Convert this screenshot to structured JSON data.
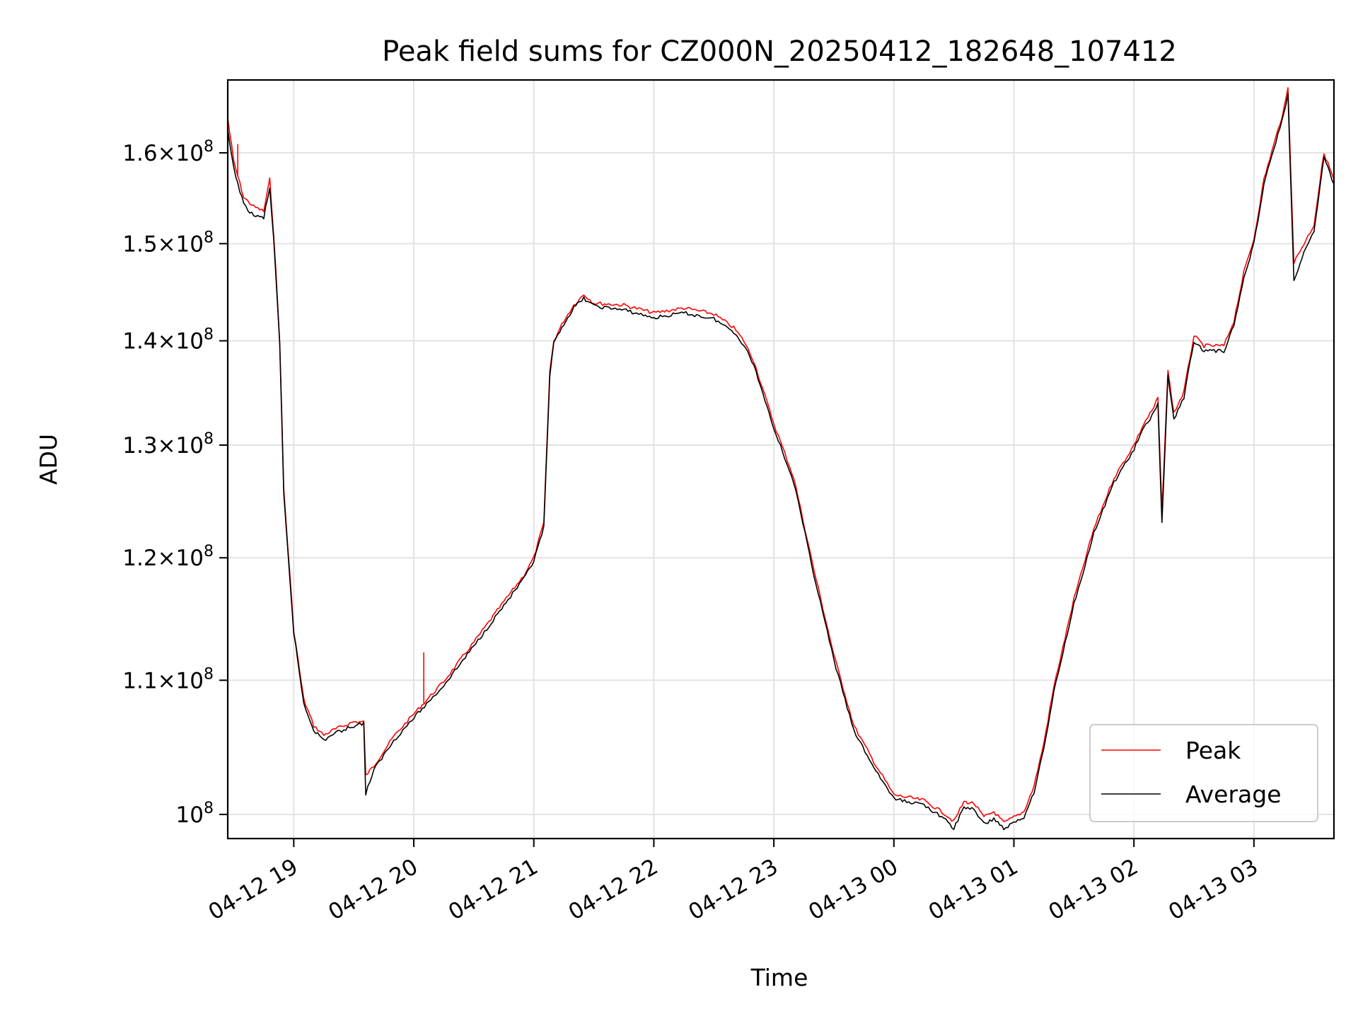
{
  "chart_data": {
    "type": "line",
    "title": "Peak field sums for CZ000N_20250412_182648_107412",
    "xlabel": "Time",
    "ylabel": "ADU",
    "yscale": "log",
    "grid": true,
    "legend_position": "bottom-right",
    "xlim": [
      "2025-04-12 18:27",
      "2025-04-13 03:40"
    ],
    "ylim": [
      98300000,
      168500000
    ],
    "x_ticks": [
      {
        "value": "2025-04-12 19:00",
        "label": "04-12 19"
      },
      {
        "value": "2025-04-12 20:00",
        "label": "04-12 20"
      },
      {
        "value": "2025-04-12 21:00",
        "label": "04-12 21"
      },
      {
        "value": "2025-04-12 22:00",
        "label": "04-12 22"
      },
      {
        "value": "2025-04-12 23:00",
        "label": "04-12 23"
      },
      {
        "value": "2025-04-13 00:00",
        "label": "04-13 00"
      },
      {
        "value": "2025-04-13 01:00",
        "label": "04-13 01"
      },
      {
        "value": "2025-04-13 02:00",
        "label": "04-13 02"
      },
      {
        "value": "2025-04-13 03:00",
        "label": "04-13 03"
      }
    ],
    "y_ticks": [
      {
        "value": 100000000,
        "mantissa": "",
        "exponent": "8"
      },
      {
        "value": 110000000,
        "mantissa": "1.1",
        "exponent": "8"
      },
      {
        "value": 120000000,
        "mantissa": "1.2",
        "exponent": "8"
      },
      {
        "value": 130000000,
        "mantissa": "1.3",
        "exponent": "8"
      },
      {
        "value": 140000000,
        "mantissa": "1.4",
        "exponent": "8"
      },
      {
        "value": 150000000,
        "mantissa": "1.5",
        "exponent": "8"
      },
      {
        "value": 160000000,
        "mantissa": "1.6",
        "exponent": "8"
      }
    ],
    "series": [
      {
        "name": "Peak",
        "color": "#ff0000",
        "x": [
          "2025-04-12 18:27",
          "2025-04-12 18:30",
          "2025-04-12 18:35",
          "2025-04-12 18:40",
          "2025-04-12 18:45",
          "2025-04-12 18:48",
          "2025-04-12 18:50",
          "2025-04-12 18:53",
          "2025-04-12 18:55",
          "2025-04-12 19:00",
          "2025-04-12 19:05",
          "2025-04-12 19:10",
          "2025-04-12 19:15",
          "2025-04-12 19:20",
          "2025-04-12 19:25",
          "2025-04-12 19:30",
          "2025-04-12 19:35",
          "2025-04-12 19:36",
          "2025-04-12 19:40",
          "2025-04-12 19:45",
          "2025-04-12 19:50",
          "2025-04-12 20:00",
          "2025-04-12 20:15",
          "2025-04-12 20:30",
          "2025-04-12 20:45",
          "2025-04-12 20:55",
          "2025-04-12 21:00",
          "2025-04-12 21:05",
          "2025-04-12 21:08",
          "2025-04-12 21:10",
          "2025-04-12 21:15",
          "2025-04-12 21:20",
          "2025-04-12 21:25",
          "2025-04-12 21:30",
          "2025-04-12 21:45",
          "2025-04-12 22:00",
          "2025-04-12 22:15",
          "2025-04-12 22:30",
          "2025-04-12 22:40",
          "2025-04-12 22:45",
          "2025-04-12 22:50",
          "2025-04-12 23:00",
          "2025-04-12 23:10",
          "2025-04-12 23:20",
          "2025-04-12 23:30",
          "2025-04-12 23:40",
          "2025-04-12 23:50",
          "2025-04-13 00:00",
          "2025-04-13 00:15",
          "2025-04-13 00:25",
          "2025-04-13 00:30",
          "2025-04-13 00:35",
          "2025-04-13 00:40",
          "2025-04-13 00:45",
          "2025-04-13 00:50",
          "2025-04-13 00:55",
          "2025-04-13 01:00",
          "2025-04-13 01:05",
          "2025-04-13 01:10",
          "2025-04-13 01:15",
          "2025-04-13 01:20",
          "2025-04-13 01:30",
          "2025-04-13 01:40",
          "2025-04-13 01:50",
          "2025-04-13 02:00",
          "2025-04-13 02:05",
          "2025-04-13 02:10",
          "2025-04-13 02:12",
          "2025-04-13 02:14",
          "2025-04-13 02:17",
          "2025-04-13 02:20",
          "2025-04-13 02:25",
          "2025-04-13 02:30",
          "2025-04-13 02:35",
          "2025-04-13 02:40",
          "2025-04-13 02:45",
          "2025-04-13 02:50",
          "2025-04-13 02:55",
          "2025-04-13 03:00",
          "2025-04-13 03:05",
          "2025-04-13 03:10",
          "2025-04-13 03:15",
          "2025-04-13 03:17",
          "2025-04-13 03:20",
          "2025-04-13 03:25",
          "2025-04-13 03:30",
          "2025-04-13 03:35",
          "2025-04-13 03:40"
        ],
        "values": [
          164000000,
          159000000,
          155000000,
          154000000,
          153500000,
          157000000,
          151000000,
          140000000,
          126000000,
          114000000,
          108500000,
          106500000,
          105800000,
          106200000,
          106500000,
          106800000,
          106800000,
          102800000,
          103500000,
          104600000,
          105700000,
          107400000,
          109900000,
          113000000,
          116300000,
          118500000,
          120000000,
          123000000,
          137000000,
          140000000,
          142000000,
          143600000,
          144700000,
          143800000,
          143600000,
          142800000,
          143300000,
          142700000,
          141300000,
          140000000,
          138000000,
          132000000,
          127000000,
          119000000,
          112000000,
          106500000,
          103800000,
          101400000,
          101000000,
          100100000,
          99500000,
          100900000,
          100800000,
          99800000,
          100200000,
          99400000,
          99800000,
          100200000,
          102000000,
          105200000,
          109500000,
          116500000,
          122500000,
          127000000,
          130000000,
          132000000,
          133500000,
          134500000,
          124000000,
          137000000,
          133000000,
          135000000,
          140500000,
          139500000,
          139500000,
          139500000,
          142000000,
          147000000,
          150500000,
          157000000,
          161000000,
          165000000,
          167500000,
          148000000,
          150000000,
          152000000,
          160000000,
          157000000
        ],
        "spikes": [
          {
            "x": "2025-04-12 18:32",
            "value": 161000000
          },
          {
            "x": "2025-04-12 20:05",
            "value": 112200000
          }
        ]
      },
      {
        "name": "Average",
        "color": "#000000",
        "x": [
          "2025-04-12 18:27",
          "2025-04-12 18:30",
          "2025-04-12 18:35",
          "2025-04-12 18:40",
          "2025-04-12 18:45",
          "2025-04-12 18:48",
          "2025-04-12 18:50",
          "2025-04-12 18:53",
          "2025-04-12 18:55",
          "2025-04-12 19:00",
          "2025-04-12 19:05",
          "2025-04-12 19:10",
          "2025-04-12 19:15",
          "2025-04-12 19:20",
          "2025-04-12 19:25",
          "2025-04-12 19:30",
          "2025-04-12 19:35",
          "2025-04-12 19:36",
          "2025-04-12 19:40",
          "2025-04-12 19:45",
          "2025-04-12 19:50",
          "2025-04-12 20:00",
          "2025-04-12 20:15",
          "2025-04-12 20:30",
          "2025-04-12 20:45",
          "2025-04-12 20:55",
          "2025-04-12 21:00",
          "2025-04-12 21:05",
          "2025-04-12 21:08",
          "2025-04-12 21:10",
          "2025-04-12 21:15",
          "2025-04-12 21:20",
          "2025-04-12 21:25",
          "2025-04-12 21:30",
          "2025-04-12 21:45",
          "2025-04-12 22:00",
          "2025-04-12 22:15",
          "2025-04-12 22:30",
          "2025-04-12 22:40",
          "2025-04-12 22:45",
          "2025-04-12 22:50",
          "2025-04-12 23:00",
          "2025-04-12 23:10",
          "2025-04-12 23:20",
          "2025-04-12 23:30",
          "2025-04-12 23:40",
          "2025-04-12 23:50",
          "2025-04-13 00:00",
          "2025-04-13 00:15",
          "2025-04-13 00:25",
          "2025-04-13 00:30",
          "2025-04-13 00:35",
          "2025-04-13 00:40",
          "2025-04-13 00:45",
          "2025-04-13 00:50",
          "2025-04-13 00:55",
          "2025-04-13 01:00",
          "2025-04-13 01:05",
          "2025-04-13 01:10",
          "2025-04-13 01:15",
          "2025-04-13 01:20",
          "2025-04-13 01:30",
          "2025-04-13 01:40",
          "2025-04-13 01:50",
          "2025-04-13 02:00",
          "2025-04-13 02:05",
          "2025-04-13 02:10",
          "2025-04-13 02:12",
          "2025-04-13 02:14",
          "2025-04-13 02:17",
          "2025-04-13 02:20",
          "2025-04-13 02:25",
          "2025-04-13 02:30",
          "2025-04-13 02:35",
          "2025-04-13 02:40",
          "2025-04-13 02:45",
          "2025-04-13 02:50",
          "2025-04-13 02:55",
          "2025-04-13 03:00",
          "2025-04-13 03:05",
          "2025-04-13 03:10",
          "2025-04-13 03:15",
          "2025-04-13 03:17",
          "2025-04-13 03:20",
          "2025-04-13 03:25",
          "2025-04-13 03:30",
          "2025-04-13 03:35",
          "2025-04-13 03:40"
        ],
        "values": [
          162500000,
          158200000,
          154200000,
          153000000,
          152800000,
          156000000,
          150500000,
          139500000,
          125500000,
          113800000,
          108200000,
          106200000,
          105400000,
          105900000,
          106200000,
          106500000,
          106700000,
          101500000,
          103200000,
          104300000,
          105400000,
          107100000,
          109600000,
          112700000,
          116000000,
          118200000,
          119700000,
          122600000,
          136500000,
          139700000,
          141700000,
          143300000,
          144300000,
          143500000,
          143100000,
          142300000,
          142800000,
          142200000,
          140900000,
          139600000,
          137600000,
          131600000,
          126600000,
          118600000,
          111600000,
          106100000,
          103400000,
          101100000,
          100700000,
          99700000,
          99000000,
          100500000,
          100400000,
          99300000,
          99700000,
          99000000,
          99400000,
          99800000,
          101600000,
          104800000,
          109100000,
          116100000,
          122100000,
          126600000,
          129600000,
          131600000,
          133000000,
          134000000,
          123000000,
          136500000,
          132400000,
          134500000,
          140000000,
          139000000,
          139000000,
          139000000,
          141500000,
          146500000,
          150000000,
          156500000,
          160500000,
          164500000,
          166800000,
          146000000,
          149000000,
          151300000,
          159500000,
          156500000
        ]
      }
    ]
  }
}
